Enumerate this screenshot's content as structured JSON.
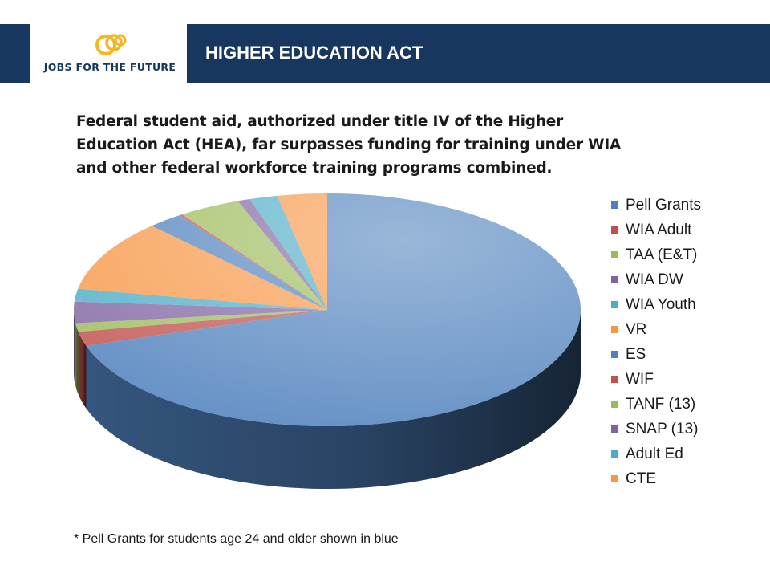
{
  "header": {
    "logo_text": "JOBS FOR THE FUTURE",
    "title": "HIGHER EDUCATION ACT",
    "band_color": "#17375e",
    "logo_icon": "jff-swirl-logo"
  },
  "chart_data": {
    "type": "pie",
    "title_lines": [
      "Federal student aid, authorized under title IV of the Higher",
      "Education Act (HEA), far surpasses funding for training under WIA",
      "and other federal workforce training programs combined."
    ],
    "legend_position": "right",
    "series": [
      {
        "name": "Pell Grants",
        "value": 70.7,
        "color": "#4f81bd"
      },
      {
        "name": "WIA Adult",
        "value": 2.0,
        "color": "#c0504d"
      },
      {
        "name": "TAA (E&T)",
        "value": 1.2,
        "color": "#9bbb59"
      },
      {
        "name": "WIA DW",
        "value": 3.0,
        "color": "#8064a2"
      },
      {
        "name": "WIA Youth",
        "value": 1.8,
        "color": "#4bacc6"
      },
      {
        "name": "VR",
        "value": 10.0,
        "color": "#f79646"
      },
      {
        "name": "ES",
        "value": 2.3,
        "color": "#4f81bd"
      },
      {
        "name": "WIF",
        "value": 0.2,
        "color": "#c0504d"
      },
      {
        "name": "TANF (13)",
        "value": 4.0,
        "color": "#9bbb59"
      },
      {
        "name": "SNAP (13)",
        "value": 0.8,
        "color": "#8064a2"
      },
      {
        "name": "Adult Ed",
        "value": 1.8,
        "color": "#4bacc6"
      },
      {
        "name": "CTE",
        "value": 3.2,
        "color": "#f79646"
      }
    ]
  },
  "footnote": "* Pell Grants for students age 24 and older shown in blue"
}
